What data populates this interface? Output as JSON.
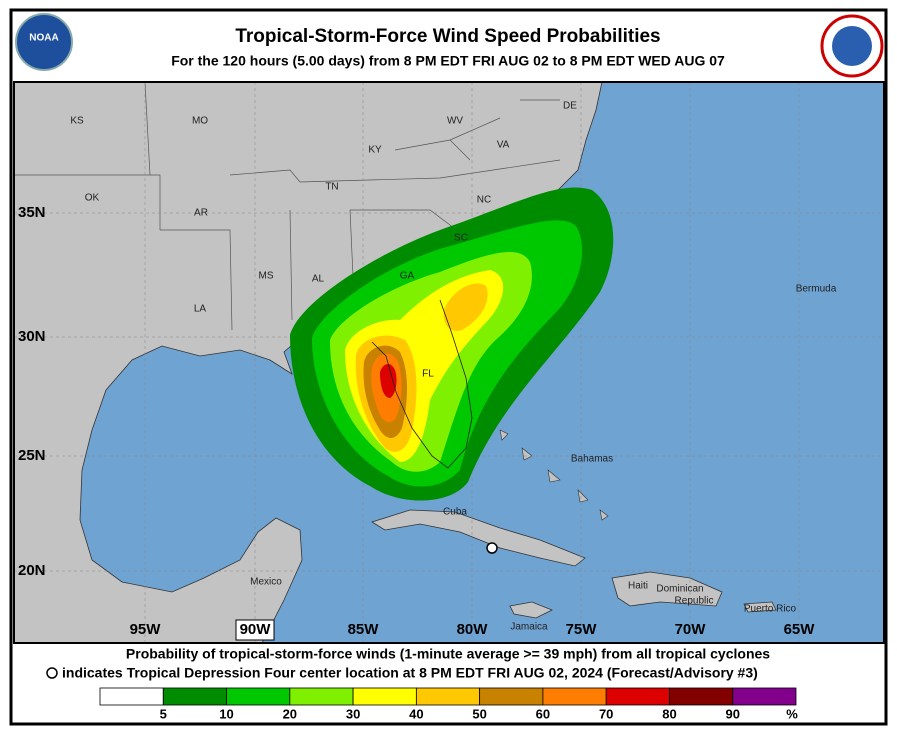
{
  "header": {
    "title": "Tropical-Storm-Force Wind Speed Probabilities",
    "subtitle": "For the 120 hours (5.00 days) from 8 PM EDT FRI AUG 02 to 8 PM EDT WED AUG 07"
  },
  "map": {
    "labels": [
      "KS",
      "MO",
      "WV",
      "VA",
      "KY",
      "TN",
      "NC",
      "OK",
      "AR",
      "SC",
      "GA",
      "MS",
      "AL",
      "LA",
      "FL",
      "DE",
      "Bermuda",
      "Bahamas",
      "Cuba",
      "Mexico",
      "Haiti",
      "Dominican",
      "Republic",
      "Jamaica",
      "Puerto Rico"
    ],
    "latitude_labels": [
      "35N",
      "30N",
      "25N",
      "20N"
    ],
    "longitude_labels": [
      "95W",
      "90W",
      "85W",
      "80W",
      "75W",
      "70W",
      "65W"
    ]
  },
  "footer": {
    "line1": "Probability of tropical-storm-force winds (1-minute average >= 39 mph) from all tropical cyclones",
    "line2": "indicates Tropical Depression Four center location at 8 PM EDT FRI AUG 02, 2024 (Forecast/Advisory #3)"
  },
  "legend": {
    "ticks": [
      5,
      10,
      20,
      30,
      40,
      50,
      60,
      70,
      80,
      90
    ],
    "unit": "%",
    "colors": [
      "#ffffff",
      "#008c00",
      "#00c800",
      "#7ff000",
      "#ffff00",
      "#ffc800",
      "#c88200",
      "#ff7d00",
      "#dc0000",
      "#820000",
      "#82008c"
    ]
  }
}
